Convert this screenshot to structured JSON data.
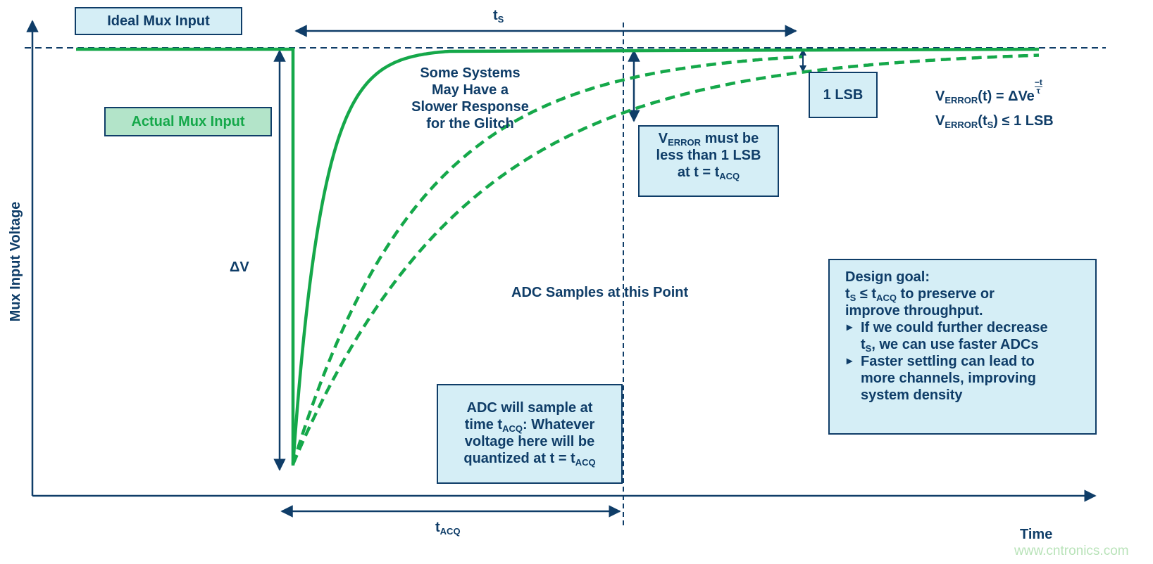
{
  "colors": {
    "navy": "#0f3d68",
    "green": "#15a84a",
    "box_blue": "#d5eef6",
    "box_green": "#b3e4c9",
    "watermark": "#b9e3b9"
  },
  "labels": {
    "ideal_mux_input": "Ideal Mux Input",
    "actual_mux_input": "Actual Mux Input",
    "y_axis": "Mux Input Voltage",
    "x_axis": "Time",
    "delta_v": "ΔV",
    "t_s": "t",
    "t_s_sub": "S",
    "t_acq": "t",
    "t_acq_sub": "ACQ",
    "slower_response": [
      "Some Systems",
      "May Have a",
      "Slower Response",
      "for the Glitch"
    ],
    "adc_samples": "ADC Samples at this Point",
    "one_lsb": "1 LSB"
  },
  "formula": {
    "line1_v": "V",
    "line1_sub": "ERROR",
    "line1_rest": "(t) = ΔVe",
    "exp_num": "−t",
    "exp_den": "τ",
    "line2_v": "V",
    "line2_sub": "ERROR",
    "line2_a": "(t",
    "line2_sub2": "S",
    "line2_b": ") ≤ 1 LSB"
  },
  "verror_box": {
    "v": "V",
    "sub": "ERROR",
    "l1": " must be",
    "l2": "less than 1 LSB",
    "l3": "at t = t",
    "l3_sub": "ACQ"
  },
  "adc_box": {
    "l1": "ADC will sample at",
    "l2a": "time t",
    "l2_sub": "ACQ",
    "l2b": ": Whatever",
    "l3": "voltage here will be",
    "l4": "quantized at t = t",
    "l4_sub": "ACQ"
  },
  "design_box": {
    "title": "Design goal:",
    "l2a": "t",
    "l2_sub": "S",
    "l2b": " ≤ t",
    "l2_sub2": "ACQ",
    "l2c": " to preserve or",
    "l3": "improve throughput.",
    "bullet1a": "If we could further decrease",
    "bullet1b": "t",
    "bullet1b_sub": "S",
    "bullet1c": ", we can use faster ADCs",
    "bullet2a": "Faster settling can lead to",
    "bullet2b": "more channels, improving",
    "bullet2c": "system density"
  },
  "watermark": "www.cntronics.com"
}
